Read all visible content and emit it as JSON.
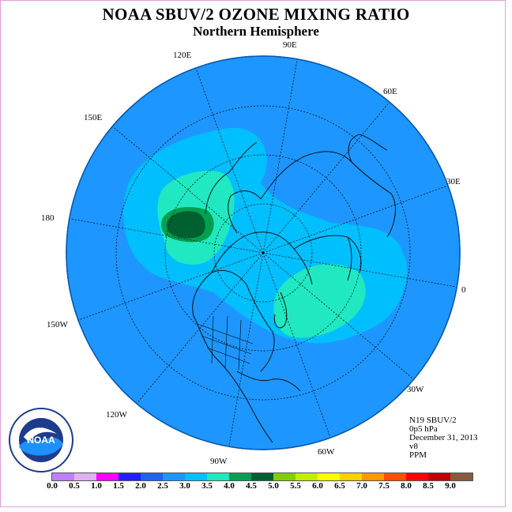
{
  "title": "NOAA SBUV/2 OZONE MIXING RATIO",
  "subtitle": "Northern Hemisphere",
  "longitude_labels": [
    "90E",
    "60E",
    "30E",
    "0",
    "30W",
    "60W",
    "90W",
    "120W",
    "150W",
    "180",
    "150E",
    "120E"
  ],
  "info": {
    "satellite": "N19 SBUV/2",
    "level": "0p5 hPa",
    "date": "December 31, 2013",
    "version": "v8",
    "units": "PPM"
  },
  "colorbar": {
    "ticks": [
      "0.0",
      "0.5",
      "1.0",
      "1.5",
      "2.0",
      "2.5",
      "3.0",
      "3.5",
      "4.0",
      "4.5",
      "5.0",
      "5.5",
      "6.0",
      "6.5",
      "7.0",
      "7.5",
      "8.0",
      "8.5",
      "9.0"
    ],
    "colors": [
      "#bf80ff",
      "#e0b0f0",
      "#ff00ff",
      "#2020ff",
      "#1e64f0",
      "#1e96ff",
      "#00bfff",
      "#20e8c0",
      "#00a050",
      "#006030",
      "#80d000",
      "#c0f000",
      "#ffff00",
      "#ffd000",
      "#ff9800",
      "#ff5000",
      "#ff0000",
      "#c00000",
      "#8b5a3c"
    ]
  },
  "logo": {
    "text": "NOAA",
    "ring_text": "NATIONAL OCEANIC AND ATMOSPHERIC ADMINISTRATION · U.S. DEPARTMENT OF COMMERCE"
  },
  "map_colors": {
    "ocean_background": "#1e96ff",
    "band_3": "#00bfff",
    "band_35": "#20e8c0",
    "band_45": "#00a050",
    "band_5": "#006030"
  }
}
